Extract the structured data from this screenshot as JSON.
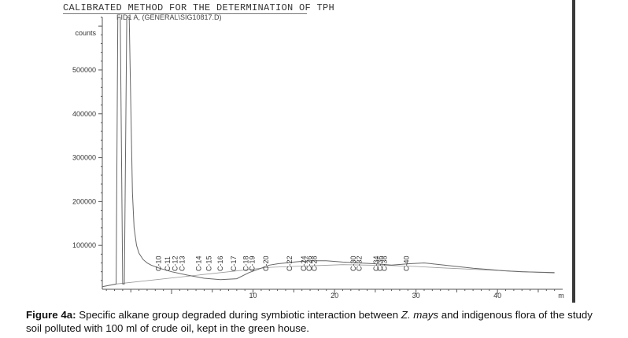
{
  "header": {
    "title": "CALIBRATED METHOD FOR THE DETERMINATION OF TPH",
    "signal": "FID1 A, (GENERAL\\SIG10817.D)"
  },
  "caption": {
    "label": "Figure 4a:",
    "text_before": "Specific alkane group degraded during symbiotic interaction between",
    "species": "Z. mays",
    "text_after": "and indigenous flora of the study soil polluted with 100 ml of crude oil, kept in the green house."
  },
  "chart_data": {
    "type": "line",
    "title": "CALIBRATED METHOD FOR THE DETERMINATION OF TPH",
    "ylabel": "counts",
    "xlabel": "m",
    "xlim": [
      -8.5,
      48
    ],
    "ylim": [
      0,
      620000
    ],
    "x_ticks": [
      10,
      20,
      30,
      40
    ],
    "y_ticks": [
      100000,
      200000,
      300000,
      400000,
      500000
    ],
    "y_tick_labels": [
      "100000",
      "200000",
      "300000",
      "400000",
      "500000"
    ],
    "series": [
      {
        "x": [
          -8.5,
          -6.8,
          -6.6,
          -6.3,
          -6.0,
          -5.8,
          -5.5,
          -5.2,
          -5.0,
          -4.8,
          -4.6,
          -4.3,
          -4.0,
          -3.5,
          -3.0,
          -2.5,
          -1.5,
          0,
          2,
          4,
          6,
          8,
          9.5,
          11,
          12,
          13,
          15,
          17,
          19,
          21,
          23,
          25,
          27,
          29,
          31,
          33,
          35,
          37,
          39,
          41,
          43,
          45,
          47
        ],
        "y": [
          6000,
          12000,
          620000,
          620000,
          12000,
          12000,
          620000,
          620000,
          420000,
          220000,
          140000,
          100000,
          82000,
          68000,
          60000,
          55000,
          48000,
          40000,
          32000,
          25000,
          22000,
          24000,
          38000,
          48000,
          55000,
          58000,
          62000,
          65000,
          65000,
          62000,
          60000,
          58000,
          55000,
          58000,
          60000,
          56000,
          52000,
          48000,
          45000,
          42000,
          40000,
          39000,
          38000
        ]
      }
    ],
    "baseline": {
      "x": [
        -6.8,
        12,
        21,
        27,
        30,
        33,
        47
      ],
      "y": [
        12000,
        50000,
        56000,
        54000,
        52000,
        49000,
        37000
      ]
    },
    "peaks": [
      {
        "label": "C-10",
        "x": -1.3
      },
      {
        "label": "C-11",
        "x": -0.2
      },
      {
        "label": "C-12",
        "x": 0.7
      },
      {
        "label": "C-13",
        "x": 1.6
      },
      {
        "label": "C-14",
        "x": 3.6
      },
      {
        "label": "C-15",
        "x": 4.9
      },
      {
        "label": "C-16",
        "x": 6.3
      },
      {
        "label": "C-17",
        "x": 7.9
      },
      {
        "label": "C-18",
        "x": 9.4
      },
      {
        "label": "C-19",
        "x": 10.2
      },
      {
        "label": "C-20",
        "x": 11.9
      },
      {
        "label": "C-22",
        "x": 14.8
      },
      {
        "label": "C-24",
        "x": 16.5
      },
      {
        "label": "C-26",
        "x": 17.2
      },
      {
        "label": "C-28",
        "x": 17.8
      },
      {
        "label": "C-30",
        "x": 22.6
      },
      {
        "label": "C-32",
        "x": 23.3
      },
      {
        "label": "C-34",
        "x": 25.4
      },
      {
        "label": "C-36",
        "x": 25.9
      },
      {
        "label": "C-38",
        "x": 26.4
      },
      {
        "label": "C-40",
        "x": 29.1
      }
    ],
    "colors": {
      "axis": "#555555",
      "trace": "#666666",
      "text": "#333333"
    }
  }
}
